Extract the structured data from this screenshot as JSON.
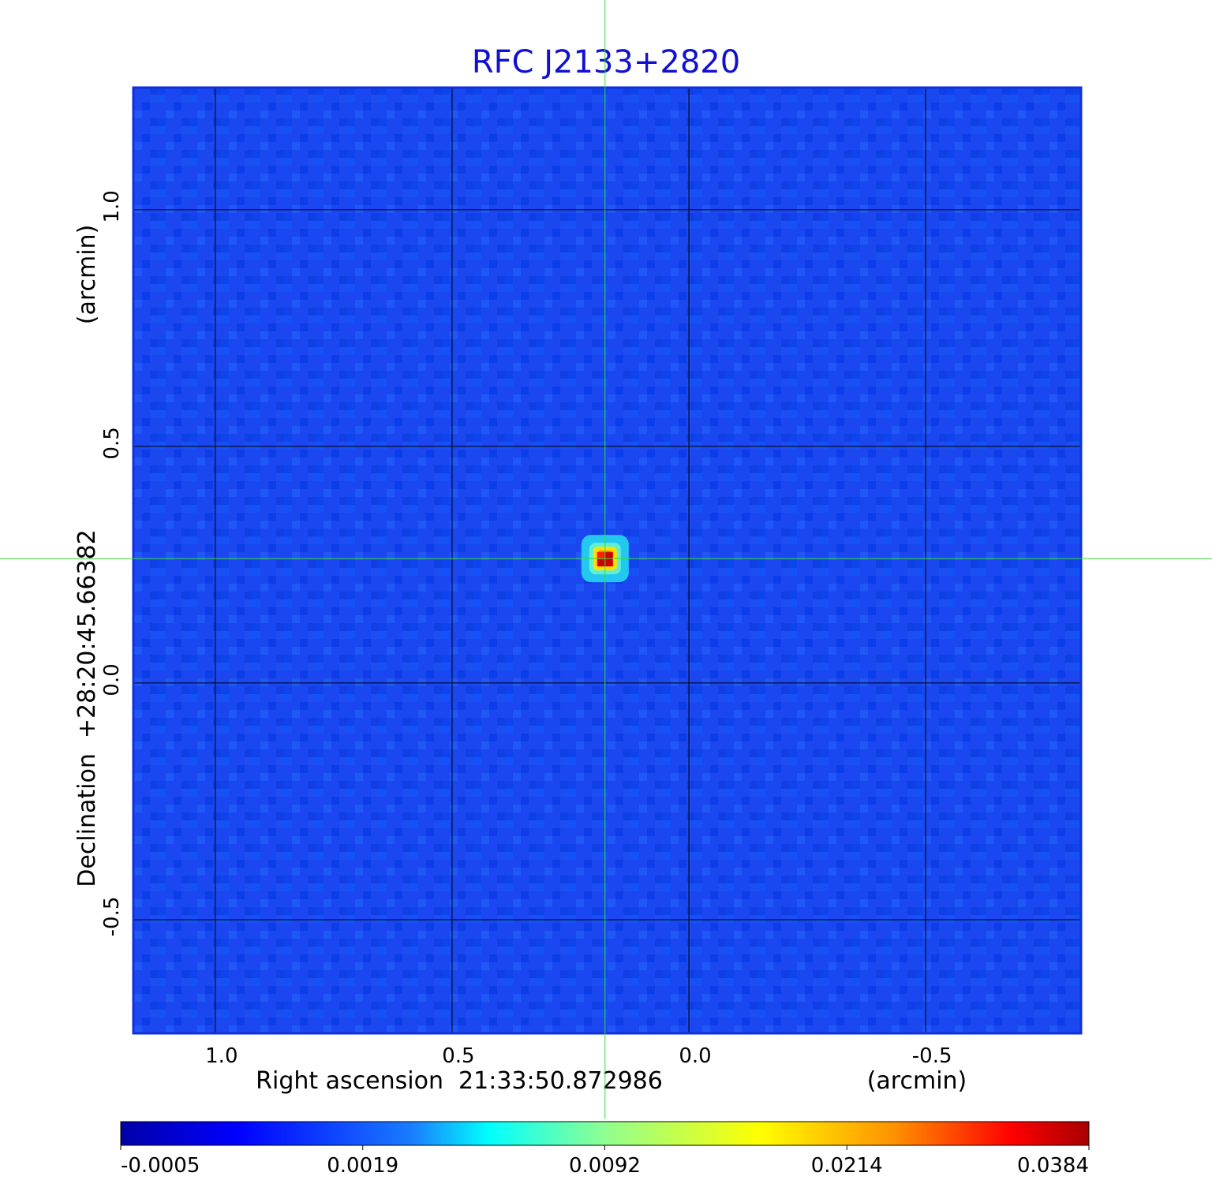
{
  "chart_data": {
    "type": "image",
    "title": "RFC J2133+2820",
    "x_label": "Right ascension  21:33:50.872986",
    "x_unit": "(arcmin)",
    "y_label": "Declination  +28:20:45.66382",
    "y_unit": "(arcmin)",
    "xlim": [
      1.173,
      -0.828
    ],
    "ylim": [
      -0.74,
      1.258
    ],
    "xticks": [
      {
        "value": 1,
        "label": "1.0"
      },
      0.5,
      {
        "value": 0,
        "label": "0.0"
      },
      -0.5
    ],
    "yticks": [
      -0.5,
      {
        "value": 0,
        "label": "0.0"
      },
      0.5,
      {
        "value": 1,
        "label": "1.0"
      }
    ],
    "grid": true,
    "crosshair": [
      0.177,
      0.263
    ],
    "colorbar_ticks": [
      -0.0005,
      0.0019,
      0.0092,
      0.0214,
      0.0384
    ]
  }
}
